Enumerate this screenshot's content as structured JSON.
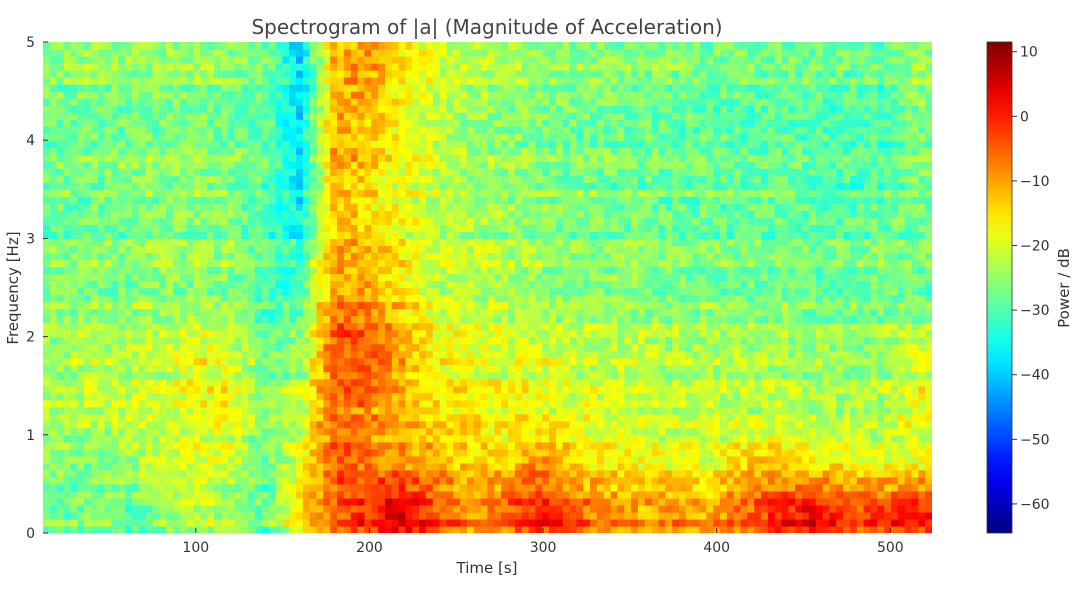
{
  "chart_data": {
    "type": "heatmap",
    "title": "Spectrogram of |a| (Magnitude of Acceleration)",
    "xlabel": "Time [s]",
    "ylabel": "Frequency [Hz]",
    "xlim": [
      12,
      524
    ],
    "ylim": [
      0,
      5
    ],
    "xticks": [
      100,
      200,
      300,
      400,
      500
    ],
    "yticks": [
      0,
      1,
      2,
      3,
      4,
      5
    ],
    "colormap": "jet",
    "colorbar": {
      "label": "Power / dB",
      "range": [
        -64.5,
        11.5
      ],
      "ticks": [
        10,
        0,
        -10,
        -20,
        -30,
        -40,
        -50,
        -60
      ]
    },
    "time_centers": [
      22,
      42,
      61,
      81,
      101,
      120,
      140,
      160,
      180,
      200,
      219,
      239,
      259,
      278,
      298,
      318,
      337,
      357,
      377,
      396,
      416,
      436,
      455,
      475,
      495,
      514
    ],
    "freq_centers": [
      0.25,
      0.75,
      1.25,
      1.75,
      2.25,
      2.75,
      3.25,
      3.75,
      4.25,
      4.75
    ],
    "values_db": [
      [
        -28,
        -26,
        -28,
        -25,
        -22,
        -24,
        -28,
        -15,
        -5,
        0,
        5,
        -3,
        -8,
        -5,
        0,
        -5,
        -8,
        -10,
        -8,
        -10,
        -5,
        0,
        3,
        -2,
        -2,
        0
      ],
      [
        -27,
        -28,
        -25,
        -22,
        -20,
        -22,
        -30,
        -20,
        -5,
        -8,
        -10,
        -12,
        -15,
        -15,
        -10,
        -15,
        -18,
        -18,
        -20,
        -20,
        -15,
        -15,
        -18,
        -18,
        -20,
        -20
      ],
      [
        -22,
        -22,
        -20,
        -20,
        -18,
        -17,
        -25,
        -22,
        -5,
        -8,
        -12,
        -15,
        -15,
        -18,
        -18,
        -20,
        -20,
        -20,
        -22,
        -22,
        -22,
        -22,
        -24,
        -22,
        -24,
        -18
      ],
      [
        -25,
        -22,
        -24,
        -22,
        -18,
        -20,
        -28,
        -25,
        -5,
        -5,
        -12,
        -18,
        -20,
        -20,
        -20,
        -22,
        -22,
        -22,
        -24,
        -24,
        -24,
        -25,
        -25,
        -26,
        -24,
        -20
      ],
      [
        -26,
        -25,
        -25,
        -24,
        -24,
        -25,
        -30,
        -28,
        -5,
        -8,
        -14,
        -20,
        -22,
        -22,
        -24,
        -24,
        -24,
        -25,
        -26,
        -26,
        -26,
        -26,
        -27,
        -27,
        -27,
        -26
      ],
      [
        -27,
        -26,
        -27,
        -25,
        -25,
        -26,
        -30,
        -32,
        -10,
        -12,
        -17,
        -22,
        -22,
        -24,
        -25,
        -25,
        -26,
        -26,
        -27,
        -27,
        -27,
        -28,
        -28,
        -28,
        -27,
        -27
      ],
      [
        -28,
        -27,
        -26,
        -26,
        -25,
        -26,
        -30,
        -35,
        -12,
        -15,
        -18,
        -22,
        -22,
        -24,
        -25,
        -26,
        -27,
        -27,
        -28,
        -28,
        -28,
        -28,
        -29,
        -29,
        -28,
        -27
      ],
      [
        -27,
        -26,
        -26,
        -25,
        -25,
        -26,
        -28,
        -38,
        -10,
        -14,
        -18,
        -22,
        -24,
        -25,
        -26,
        -27,
        -27,
        -28,
        -28,
        -28,
        -28,
        -28,
        -29,
        -29,
        -30,
        -26
      ],
      [
        -28,
        -27,
        -27,
        -27,
        -26,
        -27,
        -28,
        -38,
        -10,
        -12,
        -18,
        -22,
        -24,
        -25,
        -26,
        -27,
        -27,
        -28,
        -28,
        -29,
        -29,
        -29,
        -29,
        -30,
        -30,
        -26
      ],
      [
        -26,
        -25,
        -25,
        -26,
        -26,
        -26,
        -28,
        -40,
        -12,
        -10,
        -16,
        -21,
        -23,
        -24,
        -25,
        -26,
        -26,
        -27,
        -27,
        -28,
        -28,
        -28,
        -28,
        -29,
        -29,
        -26
      ]
    ]
  }
}
